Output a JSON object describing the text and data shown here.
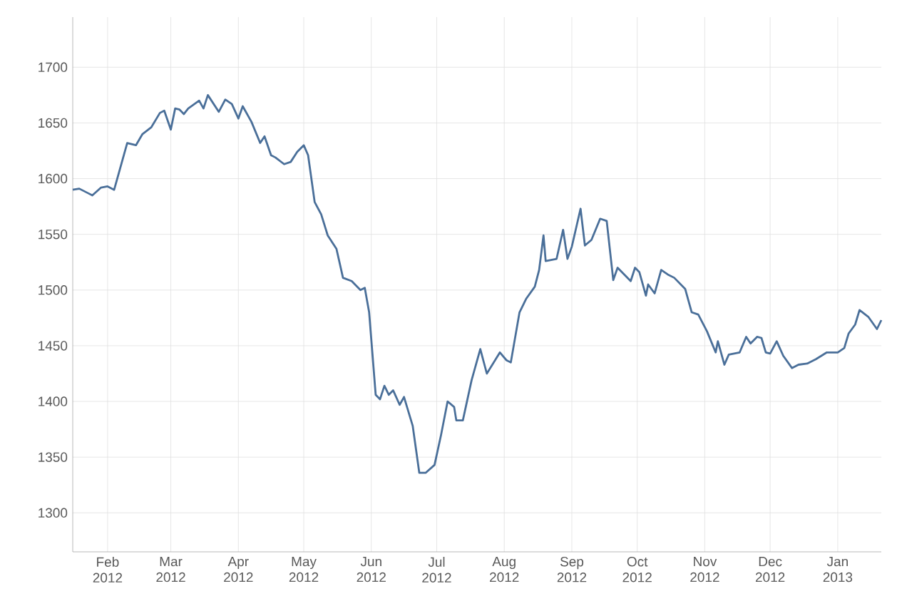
{
  "chart_data": {
    "type": "line",
    "x": [
      "2012-01-16",
      "2012-01-19",
      "2012-01-23",
      "2012-01-25",
      "2012-01-29",
      "2012-02-01",
      "2012-02-04",
      "2012-02-06",
      "2012-02-10",
      "2012-02-14",
      "2012-02-17",
      "2012-02-21",
      "2012-02-25",
      "2012-02-27",
      "2012-03-01",
      "2012-03-03",
      "2012-03-05",
      "2012-03-07",
      "2012-03-09",
      "2012-03-14",
      "2012-03-16",
      "2012-03-18",
      "2012-03-23",
      "2012-03-26",
      "2012-03-29",
      "2012-04-01",
      "2012-04-03",
      "2012-04-07",
      "2012-04-11",
      "2012-04-13",
      "2012-04-16",
      "2012-04-18",
      "2012-04-22",
      "2012-04-25",
      "2012-04-28",
      "2012-05-01",
      "2012-05-03",
      "2012-05-06",
      "2012-05-09",
      "2012-05-12",
      "2012-05-16",
      "2012-05-19",
      "2012-05-23",
      "2012-05-27",
      "2012-05-29",
      "2012-05-31",
      "2012-06-03",
      "2012-06-05",
      "2012-06-07",
      "2012-06-09",
      "2012-06-11",
      "2012-06-14",
      "2012-06-16",
      "2012-06-18",
      "2012-06-20",
      "2012-06-23",
      "2012-06-26",
      "2012-06-30",
      "2012-07-03",
      "2012-07-06",
      "2012-07-09",
      "2012-07-10",
      "2012-07-13",
      "2012-07-17",
      "2012-07-21",
      "2012-07-24",
      "2012-07-30",
      "2012-08-02",
      "2012-08-04",
      "2012-08-08",
      "2012-08-11",
      "2012-08-15",
      "2012-08-17",
      "2012-08-19",
      "2012-08-20",
      "2012-08-25",
      "2012-08-28",
      "2012-08-30",
      "2012-09-01",
      "2012-09-05",
      "2012-09-07",
      "2012-09-10",
      "2012-09-14",
      "2012-09-17",
      "2012-09-20",
      "2012-09-22",
      "2012-09-25",
      "2012-09-28",
      "2012-09-30",
      "2012-10-02",
      "2012-10-05",
      "2012-10-06",
      "2012-10-09",
      "2012-10-12",
      "2012-10-15",
      "2012-10-18",
      "2012-10-23",
      "2012-10-26",
      "2012-10-29",
      "2012-11-02",
      "2012-11-06",
      "2012-11-07",
      "2012-11-10",
      "2012-11-12",
      "2012-11-17",
      "2012-11-20",
      "2012-11-22",
      "2012-11-25",
      "2012-11-27",
      "2012-11-29",
      "2012-12-01",
      "2012-12-04",
      "2012-12-07",
      "2012-12-11",
      "2012-12-14",
      "2012-12-18",
      "2012-12-22",
      "2012-12-27",
      "2013-01-01",
      "2013-01-04",
      "2013-01-06",
      "2013-01-09",
      "2013-01-11",
      "2013-01-15",
      "2013-01-19",
      "2013-01-21"
    ],
    "series": [
      {
        "color": "#4a6f99",
        "values": [
          1590,
          1591,
          1587,
          1585,
          1592,
          1593,
          1590,
          1604,
          1632,
          1630,
          1640,
          1646,
          1659,
          1661,
          1644,
          1663,
          1662,
          1658,
          1663,
          1670,
          1663,
          1675,
          1660,
          1671,
          1667,
          1654,
          1665,
          1651,
          1632,
          1638,
          1621,
          1619,
          1613,
          1615,
          1624,
          1630,
          1621,
          1579,
          1568,
          1549,
          1537,
          1511,
          1508,
          1500,
          1502,
          1480,
          1406,
          1402,
          1414,
          1406,
          1410,
          1397,
          1404,
          1391,
          1378,
          1336,
          1336,
          1343,
          1370,
          1400,
          1395,
          1383,
          1383,
          1419,
          1447,
          1425,
          1444,
          1437,
          1435,
          1480,
          1492,
          1503,
          1518,
          1549,
          1526,
          1528,
          1554,
          1528,
          1539,
          1573,
          1540,
          1545,
          1564,
          1562,
          1509,
          1520,
          1514,
          1508,
          1520,
          1516,
          1495,
          1505,
          1497,
          1518,
          1514,
          1511,
          1501,
          1480,
          1478,
          1463,
          1444,
          1454,
          1433,
          1442,
          1444,
          1458,
          1452,
          1458,
          1457,
          1444,
          1443,
          1454,
          1441,
          1430,
          1433,
          1434,
          1438,
          1444,
          1444,
          1448,
          1461,
          1469,
          1482,
          1476,
          1465,
          1473
        ]
      }
    ],
    "xlim": [
      "2012-01-16",
      "2013-01-21"
    ],
    "xticks": [
      {
        "value": "2012-02-01",
        "label": "Feb 2012"
      },
      {
        "value": "2012-03-01",
        "label": "Mar 2012"
      },
      {
        "value": "2012-04-01",
        "label": "Apr 2012"
      },
      {
        "value": "2012-05-01",
        "label": "May 2012"
      },
      {
        "value": "2012-06-01",
        "label": "Jun 2012"
      },
      {
        "value": "2012-07-01",
        "label": "Jul 2012"
      },
      {
        "value": "2012-08-01",
        "label": "Aug 2012"
      },
      {
        "value": "2012-09-01",
        "label": "Sep 2012"
      },
      {
        "value": "2012-10-01",
        "label": "Oct 2012"
      },
      {
        "value": "2012-11-01",
        "label": "Nov 2012"
      },
      {
        "value": "2012-12-01",
        "label": "Dec 2012"
      },
      {
        "value": "2013-01-01",
        "label": "Jan 2013"
      }
    ],
    "ylim": [
      1265,
      1745
    ],
    "yticks": [
      1300,
      1350,
      1400,
      1450,
      1500,
      1550,
      1600,
      1650,
      1700
    ],
    "grid": true,
    "line_style": "solid"
  }
}
